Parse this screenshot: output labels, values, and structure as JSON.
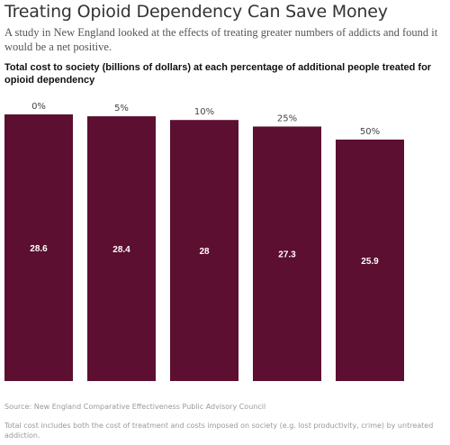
{
  "header": {
    "title": "Treating Opioid Dependency Can Save Money",
    "subtitle": "A study in New England looked at the effects of treating greater numbers of addicts and found it would be a net positive."
  },
  "chart_data": {
    "type": "bar",
    "title": "Total cost to society (billions of dollars) at each percentage of additional people treated for opioid dependency",
    "categories": [
      "0%",
      "5%",
      "10%",
      "25%",
      "50%"
    ],
    "values": [
      28.6,
      28.4,
      28,
      27.3,
      25.9
    ],
    "value_labels": [
      "28.6",
      "28.4",
      "28",
      "27.3",
      "25.9"
    ],
    "xlabel": "",
    "ylabel": "",
    "ylim": [
      0,
      28.6
    ],
    "bar_color": "#5c0f30",
    "grid": false,
    "legend": "none"
  },
  "footer": {
    "source": "Source: New England Comparative Effectiveness Public Advisory Council",
    "note": "Total cost includes both the cost of treatment and costs imposed on society (e.g. lost productivity, crime) by untreated addiction."
  }
}
